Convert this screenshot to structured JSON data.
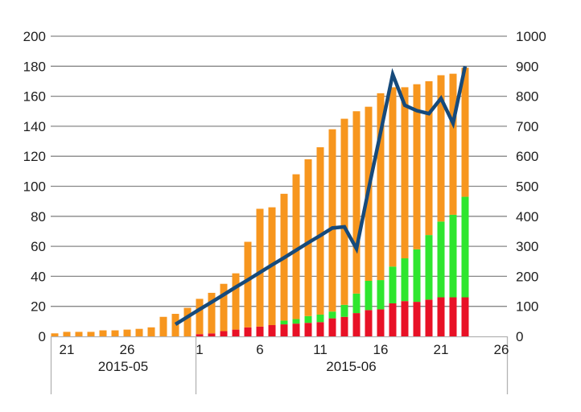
{
  "chart_data": {
    "type": "bar",
    "stacked": true,
    "title": "",
    "xlabel": "",
    "ylabel_left": "",
    "ylabel_right": "",
    "grid": true,
    "legend": "none",
    "dates": [
      "2015-05-20",
      "2015-05-21",
      "2015-05-22",
      "2015-05-23",
      "2015-05-24",
      "2015-05-25",
      "2015-05-26",
      "2015-05-27",
      "2015-05-28",
      "2015-05-29",
      "2015-05-30",
      "2015-05-31",
      "2015-06-01",
      "2015-06-02",
      "2015-06-03",
      "2015-06-04",
      "2015-06-05",
      "2015-06-06",
      "2015-06-07",
      "2015-06-08",
      "2015-06-09",
      "2015-06-10",
      "2015-06-11",
      "2015-06-12",
      "2015-06-13",
      "2015-06-14",
      "2015-06-15",
      "2015-06-16",
      "2015-06-17",
      "2015-06-18",
      "2015-06-19",
      "2015-06-20",
      "2015-06-21",
      "2015-06-22",
      "2015-06-23"
    ],
    "series": [
      {
        "name": "red-segment",
        "color": "#e81126",
        "axis": "left",
        "values": [
          0,
          0,
          0,
          0,
          0,
          0,
          0,
          0,
          0,
          0,
          0,
          0,
          1.5,
          2,
          3.5,
          4.5,
          6,
          6.5,
          7.5,
          8,
          8.5,
          9,
          9.5,
          12,
          13,
          15.5,
          17.5,
          18,
          22,
          23.5,
          23,
          24.5,
          26,
          26,
          26
        ]
      },
      {
        "name": "green-segment",
        "color": "#2ee62e",
        "axis": "left",
        "values": [
          0,
          0,
          0,
          0,
          0,
          0,
          0,
          0,
          0,
          0,
          0,
          0,
          0,
          0,
          0,
          0,
          0,
          0,
          0,
          2.5,
          3,
          4.5,
          5,
          4.5,
          8,
          13,
          19.5,
          19.5,
          24.5,
          28.5,
          35,
          43,
          50.5,
          55,
          67
        ]
      },
      {
        "name": "orange-segment",
        "color": "#f7961e",
        "axis": "left",
        "values": [
          2,
          3,
          3,
          3,
          4,
          4,
          4.5,
          5,
          6,
          13,
          15,
          19,
          23.5,
          27,
          31.5,
          37.5,
          57,
          78.5,
          78.5,
          84.5,
          96.5,
          104.5,
          111.5,
          121.5,
          124,
          121.5,
          116,
          124.5,
          119.5,
          114,
          110,
          102.5,
          97.5,
          94,
          86
        ]
      }
    ],
    "line_series": {
      "name": "blue-line",
      "color": "#164a7b",
      "axis": "right",
      "start_date": "2015-05-30",
      "start_index": 10,
      "values": [
        40,
        65,
        90,
        114,
        139,
        164,
        188,
        213,
        238,
        262,
        287,
        312,
        336,
        361,
        365,
        292,
        490,
        680,
        873,
        770,
        752,
        742,
        793,
        710,
        900
      ]
    },
    "axes": {
      "left": {
        "min": 0,
        "max": 200,
        "step": 20,
        "ticks": [
          "0",
          "20",
          "40",
          "60",
          "80",
          "100",
          "120",
          "140",
          "160",
          "180",
          "200"
        ]
      },
      "right": {
        "min": 0,
        "max": 1000,
        "step": 100,
        "ticks": [
          "0",
          "100",
          "200",
          "300",
          "400",
          "500",
          "600",
          "700",
          "800",
          "900",
          "1000"
        ]
      },
      "x": {
        "ticks": [
          {
            "label": "21",
            "day": 1
          },
          {
            "label": "26",
            "day": 6
          },
          {
            "label": "1",
            "day": 12
          },
          {
            "label": "6",
            "day": 17
          },
          {
            "label": "11",
            "day": 22
          },
          {
            "label": "16",
            "day": 27
          },
          {
            "label": "21",
            "day": 32
          },
          {
            "label": "26",
            "day": 37
          }
        ],
        "month_groups": [
          {
            "label": "2015-05"
          },
          {
            "label": "2015-06"
          }
        ]
      }
    },
    "colors": {
      "gridline": "#878787",
      "axis_line": "#b3b3b3",
      "text": "#1e1e1e"
    }
  }
}
